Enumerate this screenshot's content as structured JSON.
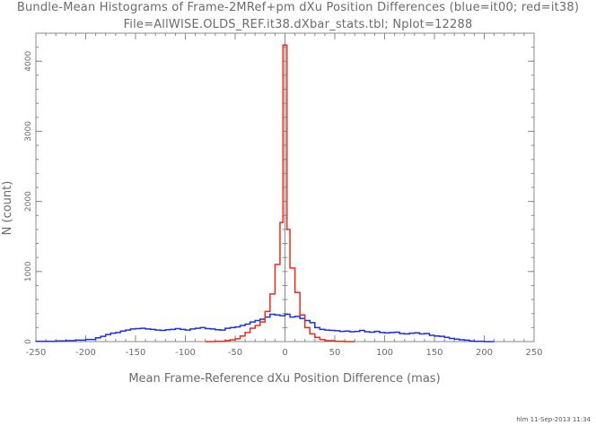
{
  "chart_data": {
    "type": "line",
    "title": "Bundle-Mean Histograms of Frame-2MRef+pm dXu Position Differences (blue=it00; red=it38)",
    "subtitle": "File=AllWISE.OLDS_REF.it38.dXbar_stats.tbl; Nplot=12288",
    "xlabel": "Mean Frame-Reference dXu Position Difference (mas)",
    "ylabel": "N (count)",
    "xlim": [
      -250,
      250
    ],
    "ylim": [
      0,
      4400
    ],
    "xticks": [
      -250,
      -200,
      -150,
      -100,
      -50,
      0,
      50,
      100,
      150,
      200,
      250
    ],
    "yticks": [
      0,
      1000,
      2000,
      3000,
      4000
    ],
    "grid": false,
    "series": [
      {
        "color": "#1a2ee6",
        "x": [
          -260,
          -250,
          -230,
          -220,
          -210,
          -200,
          -190,
          -185,
          -180,
          -175,
          -170,
          -165,
          -160,
          -155,
          -150,
          -145,
          -140,
          -135,
          -130,
          -125,
          -120,
          -115,
          -110,
          -105,
          -100,
          -95,
          -90,
          -85,
          -80,
          -75,
          -70,
          -65,
          -60,
          -55,
          -50,
          -45,
          -40,
          -35,
          -30,
          -25,
          -20,
          -15,
          -10,
          -5,
          0,
          5,
          10,
          15,
          20,
          25,
          30,
          35,
          40,
          45,
          50,
          55,
          60,
          65,
          70,
          75,
          80,
          85,
          90,
          95,
          100,
          105,
          110,
          115,
          120,
          125,
          130,
          135,
          140,
          145,
          150,
          155,
          160,
          165,
          170,
          175,
          180,
          185,
          190,
          200,
          210
        ],
        "y": [
          0,
          5,
          10,
          15,
          20,
          30,
          55,
          75,
          100,
          120,
          130,
          150,
          165,
          180,
          185,
          190,
          180,
          175,
          165,
          160,
          170,
          175,
          185,
          175,
          165,
          180,
          190,
          200,
          185,
          180,
          170,
          165,
          190,
          200,
          210,
          230,
          250,
          280,
          300,
          320,
          350,
          390,
          380,
          370,
          390,
          350,
          360,
          330,
          300,
          270,
          200,
          175,
          165,
          160,
          155,
          145,
          150,
          140,
          145,
          160,
          140,
          135,
          145,
          130,
          125,
          130,
          135,
          115,
          110,
          120,
          125,
          110,
          115,
          90,
          80,
          75,
          60,
          45,
          35,
          25,
          20,
          10,
          5,
          0,
          0
        ]
      },
      {
        "color": "#ee2a1a",
        "x": [
          -80,
          -70,
          -60,
          -55,
          -50,
          -45,
          -40,
          -35,
          -30,
          -25,
          -20,
          -15,
          -10,
          -5,
          -2,
          2,
          5,
          10,
          15,
          20,
          25,
          30,
          35,
          40,
          50,
          60,
          70
        ],
        "y": [
          0,
          5,
          15,
          25,
          40,
          80,
          130,
          190,
          230,
          280,
          430,
          680,
          1100,
          1700,
          4230,
          1600,
          1050,
          700,
          380,
          200,
          110,
          60,
          30,
          15,
          5,
          0,
          0
        ]
      }
    ]
  },
  "footer": "hlm 11-Sep-2013 11:34"
}
